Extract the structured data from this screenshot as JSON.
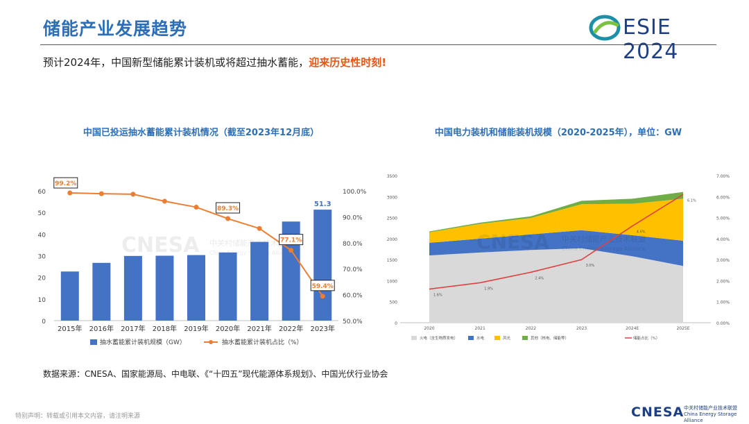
{
  "header": {
    "title": "储能产业发展趋势",
    "logo_text": "ESIE",
    "logo_year": "2024"
  },
  "subtitle": {
    "main": "预计2024年，中国新型储能累计装机或将超过抽水蓄能，",
    "highlight": "迎来历史性时刻!"
  },
  "watermark": {
    "brand": "CNESA",
    "cn": "中关村储能产业技术联盟",
    "en": "China Energy Storage Alliance"
  },
  "footer": {
    "source": "数据来源：CNESA、国家能源局、中电联、《“十四五”现代能源体系规划》、中国光伏行业协会",
    "disclaimer": "特别声明：转载或引用本文内容，请注明来源",
    "brand": "CNESA",
    "brand_cn": "中关村储能产业技术联盟",
    "brand_en": "China Energy Storage Alliance"
  },
  "colors": {
    "accent": "#2d6fb7",
    "highlight": "#e8560f",
    "bar": "#4472c4",
    "line": "#ed7d31",
    "logo": "#1d3f86"
  },
  "chart_data": [
    {
      "type": "bar",
      "title": "中国已投运抽水蓄能累计装机情况（截至2023年12月底）",
      "categories": [
        "2015年",
        "2016年",
        "2017年",
        "2018年",
        "2019年",
        "2020年",
        "2021年",
        "2022年",
        "2023年"
      ],
      "series": [
        {
          "name": "抽水蓄能累计装机规模（GW）",
          "type": "bar",
          "axis": "left",
          "color": "#4472c4",
          "values": [
            22.7,
            26.7,
            29.9,
            30.0,
            30.3,
            31.5,
            36.4,
            45.8,
            51.3
          ]
        },
        {
          "name": "抽水蓄能累计装机占比（%）",
          "type": "line",
          "axis": "right",
          "color": "#ed7d31",
          "values": [
            99.2,
            98.9,
            98.7,
            96.0,
            93.7,
            89.3,
            85.5,
            77.1,
            59.4
          ]
        }
      ],
      "bar_labels": [
        {
          "index": 8,
          "text": "51.3"
        }
      ],
      "line_labels": [
        {
          "index": 0,
          "text": "99.2%"
        },
        {
          "index": 5,
          "text": "89.3%"
        },
        {
          "index": 7,
          "text": "77.1%"
        },
        {
          "index": 8,
          "text": "59.4%"
        }
      ],
      "y_left": {
        "min": 0,
        "max": 60,
        "ticks": [
          "0",
          "10",
          "20",
          "30",
          "40",
          "50",
          "60"
        ]
      },
      "y_right": {
        "min": 50,
        "max": 100,
        "ticks": [
          "50.0%",
          "60.0%",
          "70.0%",
          "80.0%",
          "90.0%",
          "100.0%"
        ]
      },
      "legend_position": "bottom"
    },
    {
      "type": "area",
      "title": "中国电力装机和储能装机规模（2020-2025年），单位：GW",
      "x": [
        "2020",
        "2021",
        "2022",
        "2023",
        "2024E",
        "2025E"
      ],
      "stacked": true,
      "series": [
        {
          "name": "火电（含生物质发电）",
          "color": "#d9d9d9",
          "values": [
            1600,
            1670,
            1730,
            1770,
            1580,
            1350
          ]
        },
        {
          "name": "水电",
          "color": "#4472c4",
          "values": [
            300,
            330,
            370,
            430,
            500,
            600
          ]
        },
        {
          "name": "风光",
          "color": "#ffc000",
          "values": [
            250,
            350,
            390,
            620,
            750,
            1000
          ]
        },
        {
          "name": "其他（核电、储能等）",
          "color": "#70ad47",
          "values": [
            20,
            30,
            40,
            80,
            120,
            160
          ]
        },
        {
          "name": "储能占比（%）",
          "type": "line",
          "axis": "right",
          "color": "#e04040",
          "values": [
            1.6,
            1.9,
            2.4,
            3.0,
            4.6,
            6.1
          ]
        }
      ],
      "line_labels": [
        "1.6%",
        "1.9%",
        "2.4%",
        "3.0%",
        "4.6%",
        "6.1%"
      ],
      "y_left": {
        "min": 0,
        "max": 3500,
        "ticks": [
          "0",
          "500",
          "1000",
          "1500",
          "2000",
          "2500",
          "3000",
          "3500"
        ]
      },
      "y_right": {
        "min": 0,
        "max": 7,
        "ticks": [
          "0.00%",
          "1.00%",
          "2.00%",
          "3.00%",
          "4.00%",
          "5.00%",
          "6.00%",
          "7.00%"
        ]
      },
      "legend_position": "bottom"
    }
  ]
}
